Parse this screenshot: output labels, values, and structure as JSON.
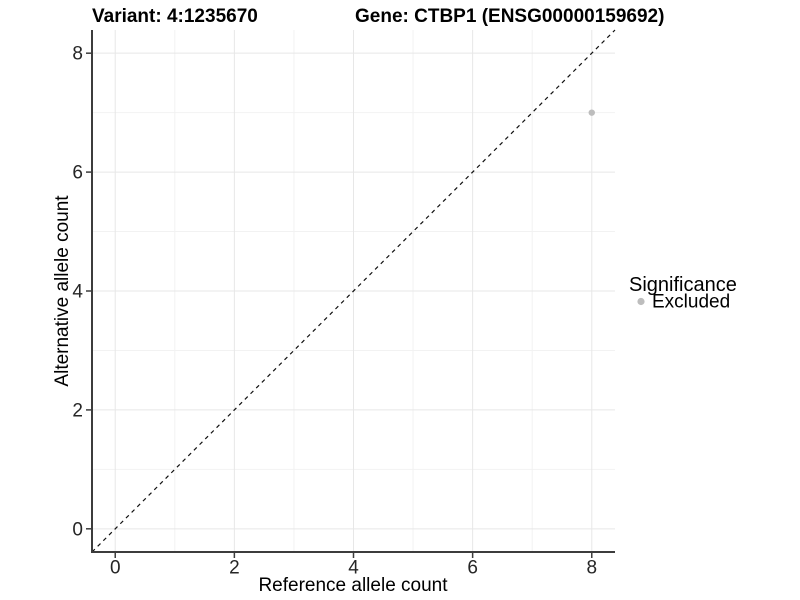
{
  "chart_data": {
    "type": "scatter",
    "title_left": "Variant: 4:1235670",
    "title_right": "Gene: CTBP1 (ENSG00000159692)",
    "xlabel": "Reference allele count",
    "ylabel": "Alternative allele count",
    "xlim": [
      -0.39,
      8.39
    ],
    "ylim": [
      -0.39,
      8.39
    ],
    "x_major_ticks": [
      0,
      2,
      4,
      6,
      8
    ],
    "x_minor_ticks": [
      1,
      3,
      5,
      7
    ],
    "y_major_ticks": [
      0,
      2,
      4,
      6,
      8
    ],
    "y_minor_ticks": [
      1,
      3,
      5,
      7
    ],
    "grid": true,
    "reference_line": {
      "type": "identity",
      "slope": 1,
      "intercept": 0,
      "style": "dashed",
      "color": "#111111"
    },
    "series": [
      {
        "name": "Excluded",
        "color": "#bdbdbd",
        "points": [
          {
            "x": 8,
            "y": 7
          }
        ]
      }
    ],
    "marker_radius_px": 3.2,
    "legend": {
      "title": "Significance",
      "position": "right",
      "items": [
        {
          "label": "Excluded",
          "color": "#bdbdbd"
        }
      ]
    },
    "colors": {
      "background": "#ffffff",
      "axis_line": "#3c3c3c",
      "tick_mark": "#3c3c3c",
      "tick_text": "#262626",
      "grid_major": "#e7e7e7",
      "grid_minor": "#f2f2f2"
    }
  }
}
